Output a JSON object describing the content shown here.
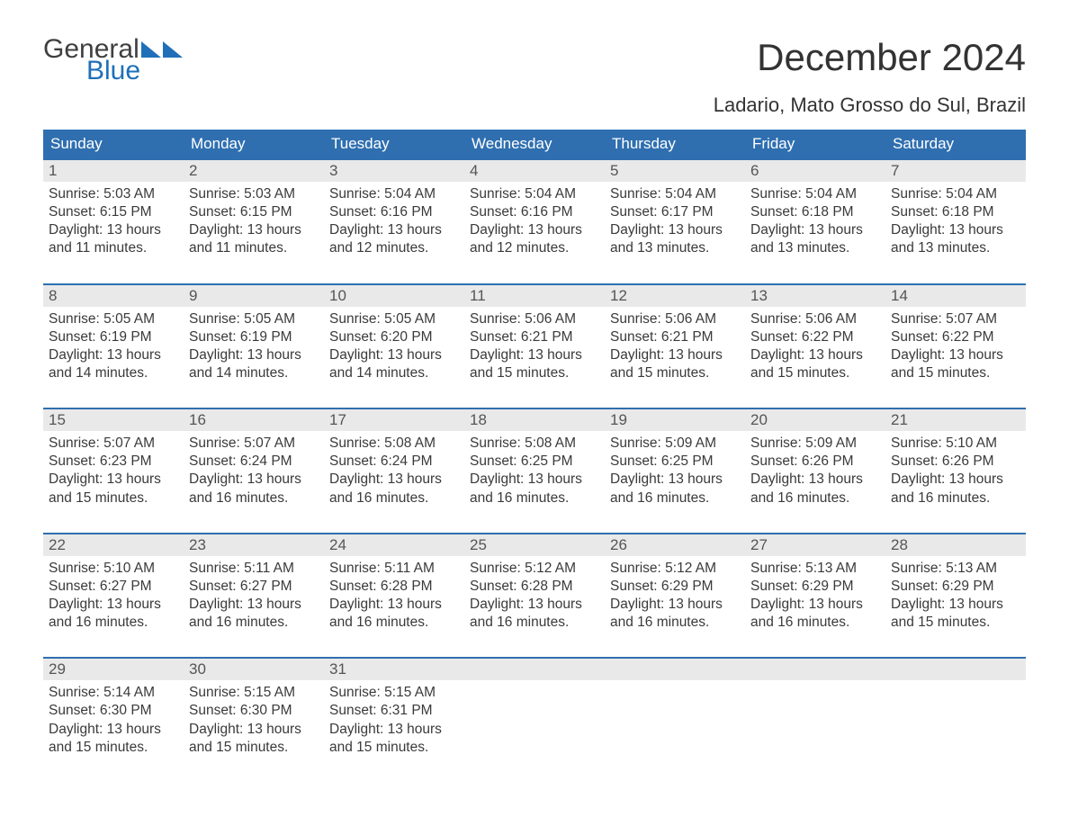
{
  "colors": {
    "header_bg": "#2f6fb0",
    "header_text": "#ffffff",
    "daynum_bg": "#e9e9e9",
    "daynum_text": "#555555",
    "body_text": "#3a3a3a",
    "logo_gray": "#3f3f3f",
    "logo_blue": "#1f70b8",
    "week_border": "#2f6fb0",
    "background": "#ffffff"
  },
  "typography": {
    "title_fontsize": 42,
    "location_fontsize": 22,
    "dayhead_fontsize": 17,
    "daynum_fontsize": 17,
    "cell_fontsize": 15.5,
    "logo_fontsize": 30
  },
  "logo": {
    "top": "General",
    "bottom": "Blue"
  },
  "title": "December 2024",
  "location": "Ladario, Mato Grosso do Sul, Brazil",
  "day_headers": [
    "Sunday",
    "Monday",
    "Tuesday",
    "Wednesday",
    "Thursday",
    "Friday",
    "Saturday"
  ],
  "weeks": [
    {
      "nums": [
        "1",
        "2",
        "3",
        "4",
        "5",
        "6",
        "7"
      ],
      "cells": [
        {
          "sunrise": "Sunrise: 5:03 AM",
          "sunset": "Sunset: 6:15 PM",
          "d1": "Daylight: 13 hours",
          "d2": "and 11 minutes."
        },
        {
          "sunrise": "Sunrise: 5:03 AM",
          "sunset": "Sunset: 6:15 PM",
          "d1": "Daylight: 13 hours",
          "d2": "and 11 minutes."
        },
        {
          "sunrise": "Sunrise: 5:04 AM",
          "sunset": "Sunset: 6:16 PM",
          "d1": "Daylight: 13 hours",
          "d2": "and 12 minutes."
        },
        {
          "sunrise": "Sunrise: 5:04 AM",
          "sunset": "Sunset: 6:16 PM",
          "d1": "Daylight: 13 hours",
          "d2": "and 12 minutes."
        },
        {
          "sunrise": "Sunrise: 5:04 AM",
          "sunset": "Sunset: 6:17 PM",
          "d1": "Daylight: 13 hours",
          "d2": "and 13 minutes."
        },
        {
          "sunrise": "Sunrise: 5:04 AM",
          "sunset": "Sunset: 6:18 PM",
          "d1": "Daylight: 13 hours",
          "d2": "and 13 minutes."
        },
        {
          "sunrise": "Sunrise: 5:04 AM",
          "sunset": "Sunset: 6:18 PM",
          "d1": "Daylight: 13 hours",
          "d2": "and 13 minutes."
        }
      ]
    },
    {
      "nums": [
        "8",
        "9",
        "10",
        "11",
        "12",
        "13",
        "14"
      ],
      "cells": [
        {
          "sunrise": "Sunrise: 5:05 AM",
          "sunset": "Sunset: 6:19 PM",
          "d1": "Daylight: 13 hours",
          "d2": "and 14 minutes."
        },
        {
          "sunrise": "Sunrise: 5:05 AM",
          "sunset": "Sunset: 6:19 PM",
          "d1": "Daylight: 13 hours",
          "d2": "and 14 minutes."
        },
        {
          "sunrise": "Sunrise: 5:05 AM",
          "sunset": "Sunset: 6:20 PM",
          "d1": "Daylight: 13 hours",
          "d2": "and 14 minutes."
        },
        {
          "sunrise": "Sunrise: 5:06 AM",
          "sunset": "Sunset: 6:21 PM",
          "d1": "Daylight: 13 hours",
          "d2": "and 15 minutes."
        },
        {
          "sunrise": "Sunrise: 5:06 AM",
          "sunset": "Sunset: 6:21 PM",
          "d1": "Daylight: 13 hours",
          "d2": "and 15 minutes."
        },
        {
          "sunrise": "Sunrise: 5:06 AM",
          "sunset": "Sunset: 6:22 PM",
          "d1": "Daylight: 13 hours",
          "d2": "and 15 minutes."
        },
        {
          "sunrise": "Sunrise: 5:07 AM",
          "sunset": "Sunset: 6:22 PM",
          "d1": "Daylight: 13 hours",
          "d2": "and 15 minutes."
        }
      ]
    },
    {
      "nums": [
        "15",
        "16",
        "17",
        "18",
        "19",
        "20",
        "21"
      ],
      "cells": [
        {
          "sunrise": "Sunrise: 5:07 AM",
          "sunset": "Sunset: 6:23 PM",
          "d1": "Daylight: 13 hours",
          "d2": "and 15 minutes."
        },
        {
          "sunrise": "Sunrise: 5:07 AM",
          "sunset": "Sunset: 6:24 PM",
          "d1": "Daylight: 13 hours",
          "d2": "and 16 minutes."
        },
        {
          "sunrise": "Sunrise: 5:08 AM",
          "sunset": "Sunset: 6:24 PM",
          "d1": "Daylight: 13 hours",
          "d2": "and 16 minutes."
        },
        {
          "sunrise": "Sunrise: 5:08 AM",
          "sunset": "Sunset: 6:25 PM",
          "d1": "Daylight: 13 hours",
          "d2": "and 16 minutes."
        },
        {
          "sunrise": "Sunrise: 5:09 AM",
          "sunset": "Sunset: 6:25 PM",
          "d1": "Daylight: 13 hours",
          "d2": "and 16 minutes."
        },
        {
          "sunrise": "Sunrise: 5:09 AM",
          "sunset": "Sunset: 6:26 PM",
          "d1": "Daylight: 13 hours",
          "d2": "and 16 minutes."
        },
        {
          "sunrise": "Sunrise: 5:10 AM",
          "sunset": "Sunset: 6:26 PM",
          "d1": "Daylight: 13 hours",
          "d2": "and 16 minutes."
        }
      ]
    },
    {
      "nums": [
        "22",
        "23",
        "24",
        "25",
        "26",
        "27",
        "28"
      ],
      "cells": [
        {
          "sunrise": "Sunrise: 5:10 AM",
          "sunset": "Sunset: 6:27 PM",
          "d1": "Daylight: 13 hours",
          "d2": "and 16 minutes."
        },
        {
          "sunrise": "Sunrise: 5:11 AM",
          "sunset": "Sunset: 6:27 PM",
          "d1": "Daylight: 13 hours",
          "d2": "and 16 minutes."
        },
        {
          "sunrise": "Sunrise: 5:11 AM",
          "sunset": "Sunset: 6:28 PM",
          "d1": "Daylight: 13 hours",
          "d2": "and 16 minutes."
        },
        {
          "sunrise": "Sunrise: 5:12 AM",
          "sunset": "Sunset: 6:28 PM",
          "d1": "Daylight: 13 hours",
          "d2": "and 16 minutes."
        },
        {
          "sunrise": "Sunrise: 5:12 AM",
          "sunset": "Sunset: 6:29 PM",
          "d1": "Daylight: 13 hours",
          "d2": "and 16 minutes."
        },
        {
          "sunrise": "Sunrise: 5:13 AM",
          "sunset": "Sunset: 6:29 PM",
          "d1": "Daylight: 13 hours",
          "d2": "and 16 minutes."
        },
        {
          "sunrise": "Sunrise: 5:13 AM",
          "sunset": "Sunset: 6:29 PM",
          "d1": "Daylight: 13 hours",
          "d2": "and 15 minutes."
        }
      ]
    },
    {
      "nums": [
        "29",
        "30",
        "31",
        "",
        "",
        "",
        ""
      ],
      "cells": [
        {
          "sunrise": "Sunrise: 5:14 AM",
          "sunset": "Sunset: 6:30 PM",
          "d1": "Daylight: 13 hours",
          "d2": "and 15 minutes."
        },
        {
          "sunrise": "Sunrise: 5:15 AM",
          "sunset": "Sunset: 6:30 PM",
          "d1": "Daylight: 13 hours",
          "d2": "and 15 minutes."
        },
        {
          "sunrise": "Sunrise: 5:15 AM",
          "sunset": "Sunset: 6:31 PM",
          "d1": "Daylight: 13 hours",
          "d2": "and 15 minutes."
        },
        {
          "sunrise": "",
          "sunset": "",
          "d1": "",
          "d2": ""
        },
        {
          "sunrise": "",
          "sunset": "",
          "d1": "",
          "d2": ""
        },
        {
          "sunrise": "",
          "sunset": "",
          "d1": "",
          "d2": ""
        },
        {
          "sunrise": "",
          "sunset": "",
          "d1": "",
          "d2": ""
        }
      ]
    }
  ]
}
